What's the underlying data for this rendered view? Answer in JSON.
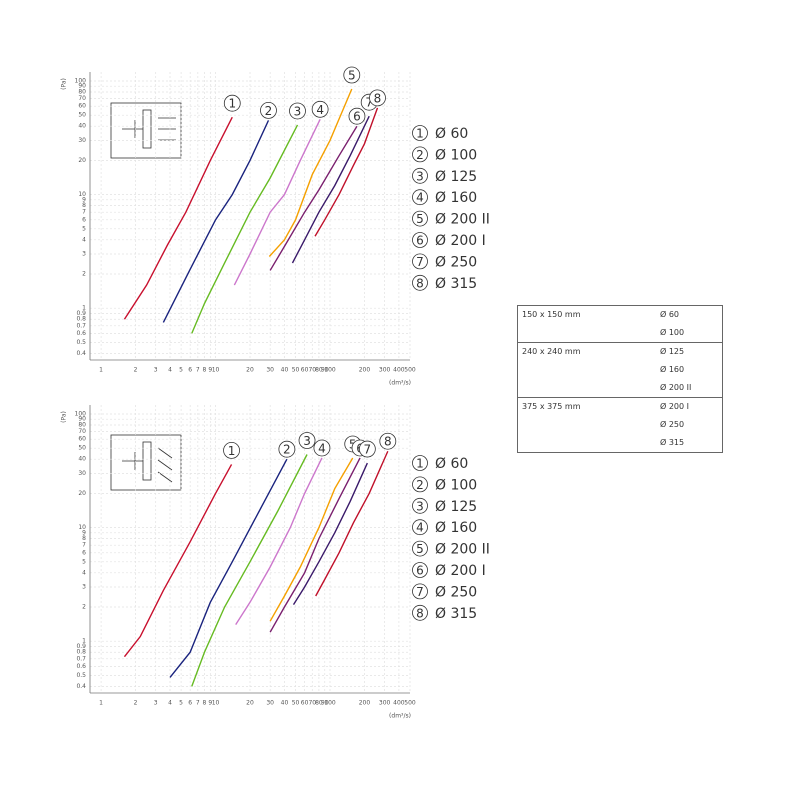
{
  "chart_data": [
    {
      "type": "line",
      "xlabel": "(dm³/s)",
      "ylabel": "(Pa)",
      "log_x": true,
      "log_y": true,
      "grid": true,
      "xlim": [
        0.8,
        500
      ],
      "ylim": [
        0.35,
        120
      ],
      "xticks": [
        1,
        2,
        3,
        4,
        5,
        6,
        7,
        8,
        9,
        10,
        20,
        30,
        40,
        50,
        60,
        70,
        80,
        90,
        100,
        200,
        300,
        400,
        500
      ],
      "yticks": [
        0.4,
        0.5,
        0.6,
        0.7,
        0.8,
        0.9,
        1,
        2,
        3,
        4,
        5,
        6,
        7,
        8,
        9,
        10,
        20,
        30,
        40,
        50,
        60,
        70,
        80,
        90,
        100
      ],
      "series": [
        {
          "label": "1",
          "name": "Ø 60",
          "color": "#c8102e",
          "x": [
            1.6,
            2.5,
            3.8,
            5.5,
            9,
            14
          ],
          "values": [
            0.8,
            1.6,
            3.6,
            7,
            20,
            48
          ]
        },
        {
          "label": "2",
          "name": "Ø 100",
          "color": "#1a237e",
          "x": [
            3.5,
            6,
            10,
            14,
            20,
            29
          ],
          "values": [
            0.75,
            2.2,
            6,
            10,
            20,
            45
          ]
        },
        {
          "label": "3",
          "name": "Ø 125",
          "color": "#66bb22",
          "x": [
            6.2,
            8,
            12,
            20,
            30,
            52
          ],
          "values": [
            0.6,
            1.1,
            2.5,
            7,
            14,
            41
          ]
        },
        {
          "label": "4",
          "name": "Ø 160",
          "color": "#cc77cc",
          "x": [
            14.6,
            20,
            30,
            40,
            55,
            82
          ],
          "values": [
            1.6,
            3,
            7,
            10,
            20,
            46
          ]
        },
        {
          "label": "5",
          "name": "Ø 200 II",
          "color": "#f5a000",
          "x": [
            29.5,
            40,
            50,
            70,
            100,
            155
          ],
          "values": [
            2.85,
            4,
            6,
            15,
            30,
            85
          ]
        },
        {
          "label": "6",
          "name": "Ø 200 I",
          "color": "#7a1f6e",
          "x": [
            30,
            40,
            60,
            80,
            120,
            172
          ],
          "values": [
            2.15,
            3.5,
            7,
            11,
            22,
            40
          ]
        },
        {
          "label": "7",
          "name": "Ø 250",
          "color": "#3a1a6a",
          "x": [
            47,
            60,
            80,
            110,
            150,
            220
          ],
          "values": [
            2.5,
            4,
            7,
            12,
            22,
            49
          ]
        },
        {
          "label": "8",
          "name": "Ø 315",
          "color": "#c0102a",
          "x": [
            74,
            90,
            120,
            160,
            200,
            260
          ],
          "values": [
            4.3,
            6,
            10,
            18,
            28,
            58
          ]
        }
      ]
    },
    {
      "type": "line",
      "xlabel": "(dm³/s)",
      "ylabel": "(Pa)",
      "log_x": true,
      "log_y": true,
      "grid": true,
      "xlim": [
        0.8,
        500
      ],
      "ylim": [
        0.35,
        120
      ],
      "xticks": [
        1,
        2,
        3,
        4,
        5,
        6,
        7,
        8,
        9,
        10,
        20,
        30,
        40,
        50,
        60,
        70,
        80,
        90,
        100,
        200,
        300,
        400,
        500
      ],
      "yticks": [
        0.4,
        0.5,
        0.6,
        0.7,
        0.8,
        0.9,
        1,
        2,
        3,
        4,
        5,
        6,
        7,
        8,
        9,
        10,
        20,
        30,
        40,
        50,
        60,
        70,
        80,
        90,
        100
      ],
      "series": [
        {
          "label": "1",
          "name": "Ø 60",
          "color": "#c8102e",
          "x": [
            1.6,
            2.2,
            3.5,
            6,
            10,
            13.8
          ],
          "values": [
            0.73,
            1.1,
            2.8,
            7.5,
            20,
            36
          ]
        },
        {
          "label": "2",
          "name": "Ø 100",
          "color": "#1a237e",
          "x": [
            4,
            6,
            9,
            14,
            25,
            42
          ],
          "values": [
            0.48,
            0.8,
            2.2,
            5,
            15,
            40
          ]
        },
        {
          "label": "3",
          "name": "Ø 125",
          "color": "#66bb22",
          "x": [
            6.2,
            8,
            12,
            20,
            35,
            63
          ],
          "values": [
            0.4,
            0.8,
            2,
            5,
            14,
            44
          ]
        },
        {
          "label": "4",
          "name": "Ø 160",
          "color": "#cc77cc",
          "x": [
            15,
            20,
            30,
            45,
            60,
            85
          ],
          "values": [
            1.4,
            2.2,
            4.5,
            10,
            20,
            41
          ]
        },
        {
          "label": "5",
          "name": "Ø 200 II",
          "color": "#f5a000",
          "x": [
            30,
            40,
            55,
            80,
            110,
            158
          ],
          "values": [
            1.5,
            2.5,
            4.5,
            10,
            22,
            41
          ]
        },
        {
          "label": "6",
          "name": "Ø 200 I",
          "color": "#7a1f6e",
          "x": [
            30,
            40,
            60,
            80,
            120,
            183
          ],
          "values": [
            1.2,
            2,
            4,
            8,
            18,
            41
          ]
        },
        {
          "label": "7",
          "name": "Ø 250",
          "color": "#3a1a6a",
          "x": [
            48,
            60,
            80,
            110,
            150,
            212
          ],
          "values": [
            2.1,
            3,
            5,
            9,
            17,
            37
          ]
        },
        {
          "label": "8",
          "name": "Ø 315",
          "color": "#c0102a",
          "x": [
            75,
            90,
            120,
            160,
            220,
            320
          ],
          "values": [
            2.5,
            3.5,
            6,
            11,
            20,
            47
          ]
        }
      ]
    }
  ],
  "table": {
    "rows": [
      {
        "size": "150 x 150 mm",
        "diameters": [
          "Ø 60",
          "Ø 100"
        ]
      },
      {
        "size": "240 x 240 mm",
        "diameters": [
          "Ø 125",
          "Ø 160",
          "Ø 200 II"
        ]
      },
      {
        "size": "375 x 375 mm",
        "diameters": [
          "Ø 200 I",
          "Ø 250",
          "Ø 315"
        ]
      }
    ]
  }
}
